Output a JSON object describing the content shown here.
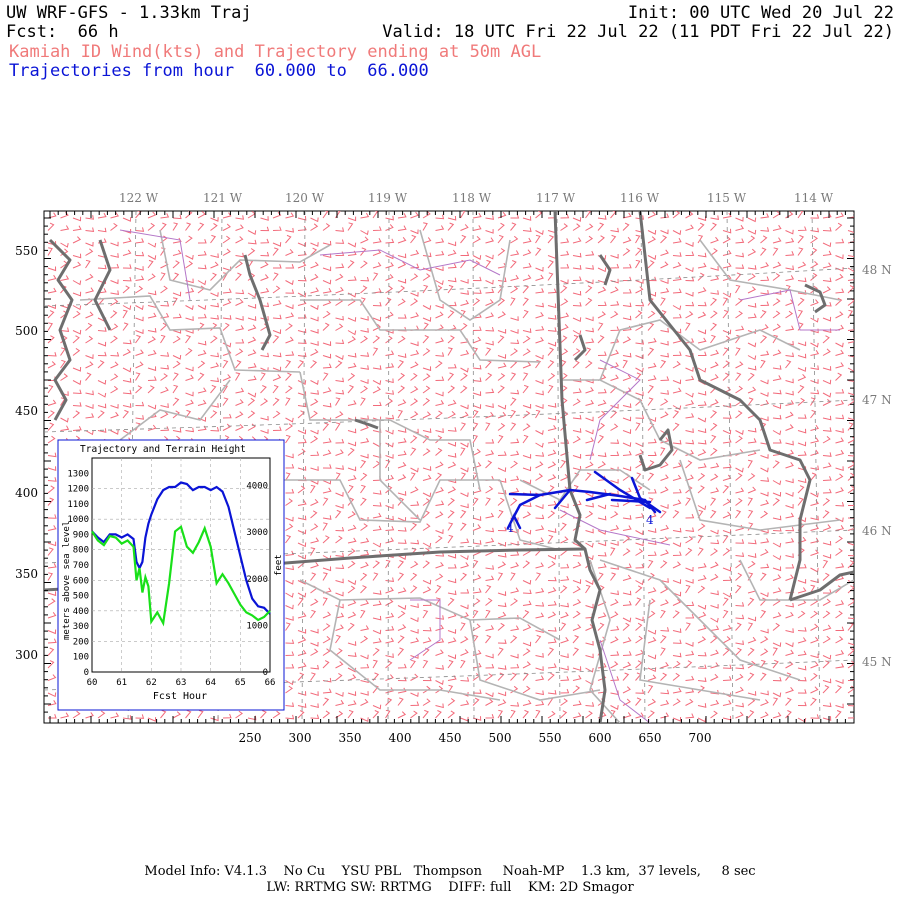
{
  "header": {
    "title": "UW WRF-GFS - 1.33km Traj",
    "fcst_label": "Fcst:",
    "fcst_value": "66 h",
    "init": "Init: 00 UTC Wed 20 Jul 22",
    "valid": "Valid: 18 UTC Fri 22 Jul 22 (11 PDT Fri 22 Jul 22)",
    "subtitle": "Kamiah ID Wind(kts) and Trajectory ending at 50m AGL",
    "traj_range_prefix": "Trajectories from hour",
    "traj_range_start": "60.000",
    "traj_range_to": "to",
    "traj_range_end": "66.000"
  },
  "colors": {
    "title_red": "#f07a7a",
    "traj_blue": "#0a14d6",
    "terrain_green": "#19e019",
    "barb_pink": "#f26a7a",
    "border_dark": "#6e6e6e",
    "county_gray": "#b4b4b4",
    "lon_lat_label": "#7a7a7a"
  },
  "map": {
    "lon_labels": [
      "122 W",
      "121 W",
      "120 W",
      "119 W",
      "118 W",
      "117 W",
      "116 W",
      "115 W",
      "114 W"
    ],
    "lat_labels": [
      "48 N",
      "47 N",
      "46 N",
      "45 N"
    ],
    "x_ticks": [
      "250",
      "300",
      "350",
      "400",
      "450",
      "500",
      "550",
      "600",
      "650",
      "700"
    ],
    "y_ticks": [
      "550",
      "500",
      "450",
      "400",
      "350",
      "300"
    ],
    "traj_markers": [
      "4",
      "4"
    ]
  },
  "inset": {
    "title": "Trajectory and Terrain Height",
    "left_axis_label": "meters above sea level",
    "right_axis_label": "feet",
    "x_label": "Fcst Hour",
    "left_ticks": [
      "1300",
      "1200",
      "1100",
      "1000",
      "900",
      "800",
      "700",
      "600",
      "500",
      "400",
      "300",
      "200",
      "100",
      "0"
    ],
    "right_ticks": [
      "4000",
      "3000",
      "2000",
      "1000",
      "0"
    ],
    "x_ticks": [
      "60",
      "61",
      "62",
      "63",
      "64",
      "65",
      "66"
    ]
  },
  "chart_data": {
    "type": "line",
    "title": "Trajectory and Terrain Height",
    "xlabel": "Fcst Hour",
    "ylabel": "meters above sea level",
    "y2label": "feet",
    "xlim": [
      60,
      66
    ],
    "ylim": [
      0,
      1400
    ],
    "series": [
      {
        "color": "#0a14d6",
        "x": [
          60.0,
          60.2,
          60.4,
          60.6,
          60.8,
          61.0,
          61.2,
          61.4,
          61.5,
          61.6,
          61.7,
          61.8,
          61.9,
          62.0,
          62.2,
          62.4,
          62.6,
          62.8,
          63.0,
          63.2,
          63.4,
          63.6,
          63.8,
          64.0,
          64.2,
          64.4,
          64.6,
          64.8,
          65.0,
          65.2,
          65.4,
          65.6,
          65.8,
          66.0
        ],
        "y": [
          920,
          880,
          850,
          900,
          900,
          880,
          900,
          870,
          720,
          680,
          720,
          880,
          970,
          1030,
          1130,
          1190,
          1210,
          1210,
          1240,
          1230,
          1190,
          1210,
          1210,
          1190,
          1210,
          1180,
          1080,
          920,
          760,
          600,
          480,
          430,
          420,
          380
        ]
      },
      {
        "color": "#19e019",
        "x": [
          60.0,
          60.2,
          60.4,
          60.6,
          60.8,
          61.0,
          61.2,
          61.4,
          61.5,
          61.6,
          61.7,
          61.8,
          61.9,
          62.0,
          62.2,
          62.4,
          62.6,
          62.8,
          63.0,
          63.2,
          63.4,
          63.6,
          63.8,
          64.0,
          64.2,
          64.4,
          64.6,
          64.8,
          65.0,
          65.2,
          65.4,
          65.6,
          65.8,
          66.0
        ],
        "y": [
          920,
          860,
          830,
          890,
          880,
          840,
          860,
          820,
          600,
          680,
          520,
          620,
          560,
          330,
          390,
          320,
          580,
          920,
          950,
          820,
          780,
          850,
          940,
          820,
          580,
          640,
          580,
          510,
          440,
          390,
          370,
          340,
          360,
          400
        ]
      }
    ]
  },
  "footer": {
    "line1": "Model Info: V4.1.3    No Cu    YSU PBL   Thompson     Noah-MP    1.3 km,  37 levels,     8 sec",
    "line2": "LW: RRTMG SW: RRTMG    DIFF: full    KM: 2D Smagor"
  }
}
